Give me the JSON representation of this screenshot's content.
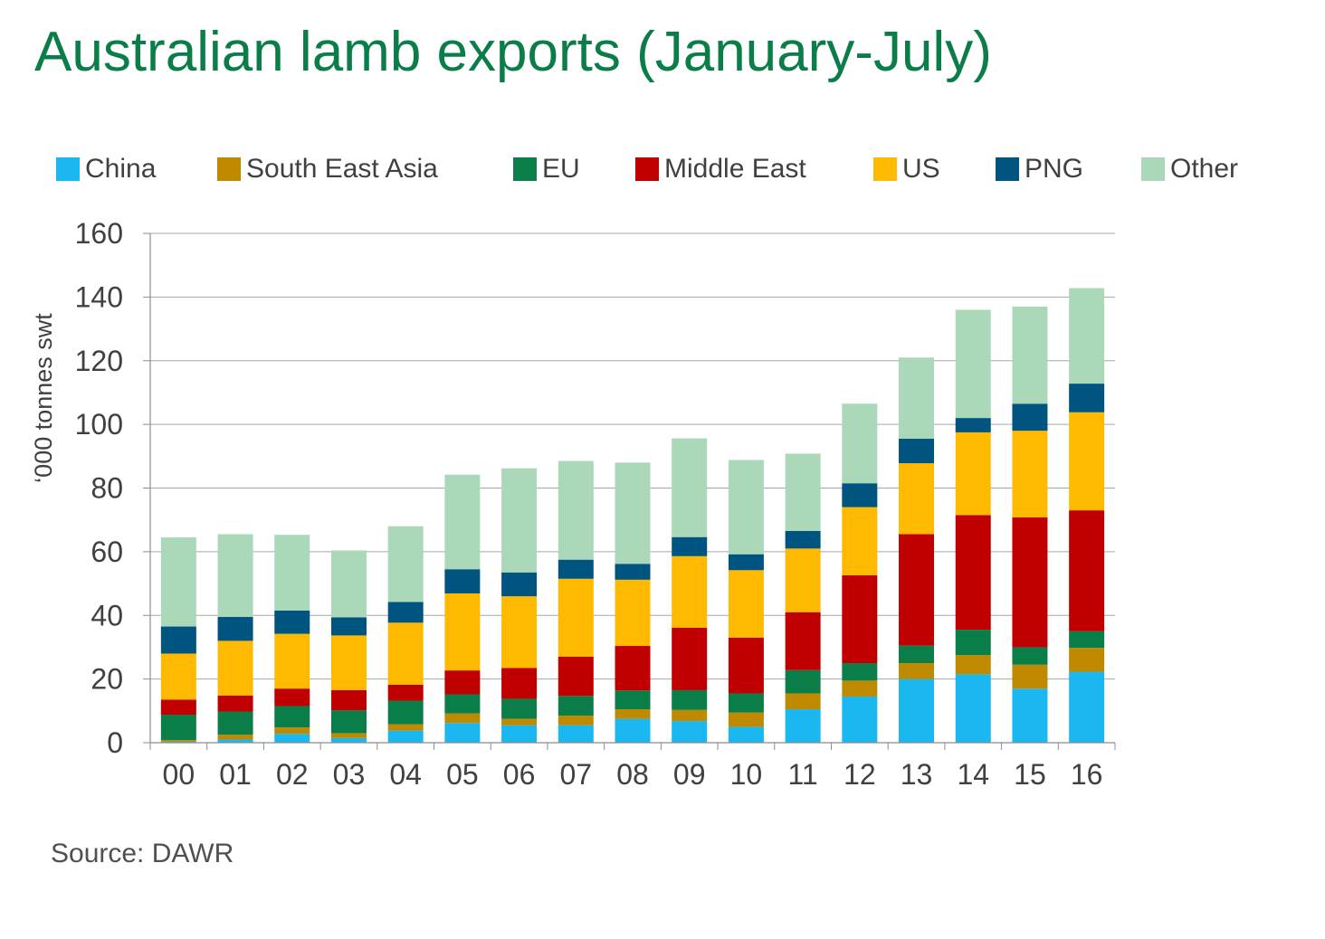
{
  "title": "Australian lamb exports (January-July)",
  "source": "Source:  DAWR",
  "chart_data": {
    "type": "bar",
    "stacked": true,
    "title": "Australian lamb exports (January-July)",
    "xlabel": "",
    "ylabel": "‘000 tonnes  swt",
    "ylim": [
      0,
      160
    ],
    "yticks": [
      0,
      20,
      40,
      60,
      80,
      100,
      120,
      140,
      160
    ],
    "grid": true,
    "legend_position": "top",
    "categories": [
      "00",
      "01",
      "02",
      "03",
      "04",
      "05",
      "06",
      "07",
      "08",
      "09",
      "10",
      "11",
      "12",
      "13",
      "14",
      "15",
      "16"
    ],
    "series": [
      {
        "name": "China",
        "color": "#1ab7f0",
        "values": [
          0.3,
          1.0,
          2.8,
          1.5,
          3.8,
          6.2,
          5.5,
          5.5,
          7.5,
          6.8,
          5.0,
          10.5,
          14.5,
          20.0,
          21.5,
          17.0,
          22.3
        ]
      },
      {
        "name": "South East Asia",
        "color": "#c08a00",
        "values": [
          0.5,
          1.5,
          2.0,
          1.5,
          2.0,
          3.0,
          2.0,
          3.0,
          3.0,
          3.5,
          4.5,
          5.0,
          5.0,
          5.0,
          6.0,
          7.5,
          7.5
        ]
      },
      {
        "name": "EU",
        "color": "#0a7d48",
        "values": [
          8.0,
          7.3,
          6.7,
          7.2,
          7.4,
          6.0,
          6.3,
          6.2,
          5.9,
          6.2,
          6.0,
          7.3,
          5.5,
          5.5,
          8.0,
          5.5,
          5.2
        ]
      },
      {
        "name": "Middle East",
        "color": "#c00000",
        "values": [
          4.7,
          5.0,
          5.5,
          6.3,
          5.0,
          7.5,
          9.7,
          12.3,
          14.0,
          19.6,
          17.5,
          18.2,
          27.6,
          35.0,
          36.0,
          40.8,
          38.0
        ]
      },
      {
        "name": "US",
        "color": "#ffb900",
        "values": [
          14.5,
          17.2,
          17.2,
          17.2,
          19.5,
          24.2,
          22.5,
          24.5,
          20.8,
          22.5,
          21.2,
          20.0,
          21.4,
          22.3,
          26.0,
          27.2,
          30.8
        ]
      },
      {
        "name": "PNG",
        "color": "#005480",
        "values": [
          8.5,
          7.5,
          7.3,
          5.7,
          6.5,
          7.6,
          7.5,
          6.0,
          5.0,
          6.0,
          5.0,
          5.5,
          7.5,
          7.7,
          4.5,
          8.5,
          9.0
        ]
      },
      {
        "name": "Other",
        "color": "#aad8b8",
        "values": [
          28.0,
          26.0,
          23.8,
          21.0,
          23.8,
          29.7,
          32.7,
          31.0,
          31.8,
          31.0,
          29.6,
          24.3,
          25.0,
          25.5,
          34.0,
          30.5,
          30.0
        ]
      }
    ]
  }
}
